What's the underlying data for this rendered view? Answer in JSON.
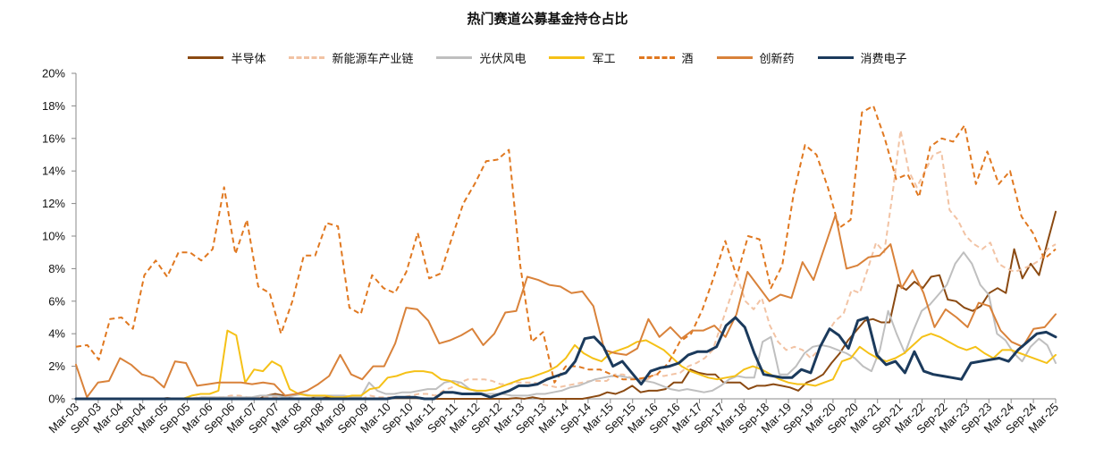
{
  "chart_data": {
    "type": "line",
    "title": "热门赛道公募基金持仓占比",
    "xlabel": "",
    "ylabel": "",
    "ylim": [
      0,
      20
    ],
    "y_ticks": [
      "0%",
      "2%",
      "4%",
      "6%",
      "8%",
      "10%",
      "12%",
      "14%",
      "16%",
      "18%",
      "20%"
    ],
    "x_tick_labels": [
      "Mar-03",
      "Sep-03",
      "Mar-04",
      "Sep-04",
      "Mar-05",
      "Sep-05",
      "Mar-06",
      "Sep-06",
      "Mar-07",
      "Sep-07",
      "Mar-08",
      "Sep-08",
      "Mar-09",
      "Sep-09",
      "Mar-10",
      "Sep-10",
      "Mar-11",
      "Sep-11",
      "Mar-12",
      "Sep-12",
      "Mar-13",
      "Sep-13",
      "Mar-14",
      "Sep-14",
      "Mar-15",
      "Sep-15",
      "Mar-16",
      "Sep-16",
      "Mar-17",
      "Sep-17",
      "Mar-18",
      "Sep-18",
      "Mar-19",
      "Sep-19",
      "Mar-20",
      "Sep-20",
      "Mar-21",
      "Sep-21",
      "Mar-22",
      "Sep-22",
      "Mar-23",
      "Sep-23",
      "Mar-24",
      "Sep-24",
      "Mar-25"
    ],
    "legend_position": "top",
    "grid": false,
    "series": [
      {
        "name": "半导体",
        "color": "#8B4A12",
        "dashed": false,
        "width": 2,
        "values": [
          0,
          0,
          0,
          0,
          0,
          0,
          0,
          0,
          0,
          0,
          0,
          0.05,
          0,
          0,
          0,
          0,
          0,
          0,
          0,
          0,
          0,
          0,
          0,
          0.2,
          0.3,
          0.2,
          0,
          0,
          0,
          0.1,
          0.1,
          0.05,
          0,
          0,
          0,
          0,
          0,
          0,
          0.05,
          0.05,
          0.05,
          0.05,
          0,
          0,
          0,
          0,
          0,
          0,
          0,
          0,
          0,
          0,
          0,
          0.05,
          0,
          0.1,
          0,
          0,
          0,
          0,
          0,
          0,
          0.1,
          0.2,
          0.4,
          0.3,
          0.5,
          0.8,
          0.4,
          0.5,
          0.5,
          0.6,
          1,
          1,
          1.8,
          1.6,
          1.5,
          1.5,
          1,
          1,
          1,
          0.6,
          0.8,
          0.8,
          0.9,
          0.8,
          0.7,
          0.5,
          1,
          1.2,
          1.5,
          2.2,
          2.8,
          3.6,
          4.2,
          4.8,
          4.9,
          4.7,
          4.7,
          7,
          6.7,
          7.2,
          6.8,
          7.5,
          7.6,
          6.1,
          6,
          5.6,
          5.4,
          5.7,
          6.5,
          6.8,
          6.5,
          9.2,
          7.4,
          8.3,
          7.6,
          9.6,
          11.5
        ]
      },
      {
        "name": "新能源车产业链",
        "color": "#F2C3A4",
        "dashed": true,
        "width": 2,
        "values": [
          0,
          0,
          0,
          0,
          0,
          0,
          0,
          0,
          0,
          0,
          0,
          0,
          0,
          0,
          0,
          0.1,
          0.1,
          0.1,
          0.1,
          0.2,
          0.2,
          0.1,
          0.1,
          0.1,
          0.1,
          0.1,
          0.1,
          0,
          0,
          0,
          0,
          0,
          0,
          0,
          0,
          0,
          0.2,
          0.1,
          0.1,
          0.1,
          0.1,
          0.2,
          0.3,
          0.3,
          0.2,
          0.5,
          0.7,
          1,
          1.2,
          1.2,
          1.2,
          1.1,
          0.9,
          0.9,
          1,
          1,
          1,
          0.9,
          0.8,
          0.7,
          0.8,
          0.9,
          1,
          1.1,
          1.1,
          1.1,
          1.5,
          1.5,
          1.3,
          1.2,
          1.2,
          1.5,
          1.4,
          1.5,
          1.6,
          2,
          2.2,
          2.5,
          3,
          4.5,
          6,
          7.5,
          6,
          5.5,
          6.2,
          4.5,
          3.5,
          3,
          3.2,
          3,
          2.5,
          3,
          4,
          4.8,
          5.2,
          6.7,
          6.5,
          8,
          9.6,
          9,
          12.5,
          16.5,
          14,
          13,
          14,
          15,
          15.2,
          11.6,
          11,
          10,
          9.5,
          9.2,
          9.6,
          8.3,
          8,
          7.8,
          8,
          8.2,
          8.5,
          9.2,
          9.5
        ]
      },
      {
        "name": "光伏风电",
        "color": "#BFBFBF",
        "dashed": false,
        "width": 2,
        "values": [
          0,
          0,
          0,
          0,
          0,
          0,
          0,
          0,
          0,
          0,
          0,
          0,
          0,
          0,
          0,
          0.1,
          0.1,
          0.1,
          0.1,
          0.1,
          0.1,
          0.1,
          0.2,
          0.2,
          0.2,
          0.1,
          0.2,
          0.3,
          0.2,
          0.1,
          0.2,
          0.2,
          0.2,
          0.1,
          0.1,
          1,
          0.5,
          0.3,
          0.3,
          0.4,
          0.4,
          0.5,
          0.6,
          0.6,
          1,
          1.1,
          1,
          0.6,
          0.4,
          0.3,
          0.3,
          0.3,
          0.2,
          0.2,
          0.2,
          0.3,
          0.3,
          0.4,
          0.5,
          0.7,
          0.8,
          1,
          1.2,
          1.3,
          1.4,
          1.4,
          1.3,
          1.2,
          1.1,
          1,
          0.8,
          0.6,
          0.5,
          0.6,
          0.5,
          0.4,
          0.5,
          0.8,
          1.2,
          1.4,
          1.3,
          1.3,
          3.5,
          3.8,
          1.5,
          1.5,
          2,
          2.8,
          3.2,
          3.3,
          3.2,
          3,
          2.8,
          2.5,
          2,
          1.7,
          3,
          5.4,
          4,
          2.8,
          4.2,
          5.4,
          5.8,
          6.4,
          7,
          8.3,
          9,
          8.3,
          7,
          6.4,
          4,
          3.6,
          2.8,
          2.3,
          3.2,
          3.7,
          3.3,
          2.2
        ]
      },
      {
        "name": "军工",
        "color": "#F5C117",
        "dashed": false,
        "width": 2,
        "values": [
          0,
          0,
          0,
          0,
          0,
          0,
          0,
          0,
          0,
          0,
          0,
          0,
          0,
          0.2,
          0.3,
          0.3,
          0.5,
          4.2,
          3.9,
          1,
          1.8,
          1.7,
          2.3,
          2,
          0.6,
          0.3,
          0.2,
          0.2,
          0.2,
          0.1,
          0.1,
          0.2,
          0.2,
          0.6,
          0.7,
          1.3,
          1.4,
          1.6,
          1.7,
          1.7,
          1.6,
          1.2,
          1.1,
          0.8,
          0.6,
          0.5,
          0.5,
          0.6,
          0.8,
          1,
          1.2,
          1.3,
          1.5,
          1.7,
          2,
          2.5,
          3.3,
          2.8,
          2.5,
          2.3,
          2.8,
          3,
          3.2,
          3.5,
          3.6,
          3.3,
          3,
          2.5,
          2,
          1.7,
          1.5,
          1.3,
          1.2,
          1.3,
          1.4,
          1.8,
          2,
          1.8,
          1.5,
          1.2,
          1,
          0.9,
          0.9,
          0.8,
          1,
          1.2,
          2.3,
          2.5,
          3.2,
          2.8,
          2.5,
          2.3,
          2.5,
          2.8,
          3.3,
          3.8,
          4,
          3.8,
          3.5,
          3.2,
          3,
          3.2,
          2.8,
          2.5,
          3,
          3,
          2.8,
          2.6,
          2.4,
          2.2,
          2.7
        ]
      },
      {
        "name": "酒",
        "color": "#E07820",
        "dashed": true,
        "width": 2,
        "values": [
          3.2,
          3.3,
          2.4,
          4.9,
          5,
          4.3,
          7.6,
          8.5,
          7.5,
          9,
          9,
          8.5,
          9.2,
          13,
          8.9,
          11,
          6.9,
          6.5,
          4,
          6,
          8.8,
          8.8,
          10.8,
          10.6,
          5.6,
          5.2,
          7.6,
          6.8,
          6.5,
          7.8,
          10.2,
          7.4,
          7.7,
          9.9,
          12,
          13.2,
          14.6,
          14.7,
          15.3,
          8.2,
          3.5,
          4.1,
          1,
          2,
          2,
          1.8,
          1.8,
          1.5,
          1.2,
          1.2,
          1.3,
          1.5,
          2.2,
          3.5,
          4,
          5.5,
          7.5,
          9.7,
          7.5,
          10,
          9.8,
          6.8,
          8.2,
          12.6,
          15.6,
          15,
          13,
          10.5,
          11,
          17.6,
          18,
          16,
          13.5,
          13.8,
          12.4,
          15.5,
          16,
          15.8,
          16.8,
          13.2,
          15.2,
          13.2,
          14,
          11.2,
          10.2,
          8.6,
          9.2
        ]
      },
      {
        "name": "创新药",
        "color": "#D9823A",
        "dashed": false,
        "width": 2,
        "values": [
          2.1,
          0.1,
          1,
          1.1,
          2.5,
          2.1,
          1.5,
          1.3,
          0.7,
          2.3,
          2.2,
          0.8,
          0.9,
          1,
          1,
          1,
          0.9,
          1,
          0.9,
          0.2,
          0.3,
          0.5,
          0.9,
          1.4,
          2.7,
          1.5,
          1.2,
          2,
          2,
          3.4,
          5.6,
          5.5,
          4.8,
          3.4,
          3.6,
          3.9,
          4.3,
          3.3,
          4,
          5.3,
          5.4,
          7.5,
          7.3,
          7,
          6.9,
          6.5,
          6.6,
          5.7,
          3,
          2.8,
          2.7,
          3.1,
          4.9,
          3.8,
          4.4,
          3.7,
          4.2,
          4.2,
          4.5,
          3.8,
          5.2,
          7.8,
          6.9,
          6,
          6.4,
          6.2,
          8.4,
          7.3,
          9.3,
          11.3,
          8,
          8.2,
          8.7,
          8.8,
          9.5,
          6.8,
          7.9,
          6.5,
          4.4,
          5.5,
          5,
          4.4,
          5.9,
          5.7,
          4.2,
          3.5,
          3.2,
          4.3,
          4.4,
          5.2
        ]
      },
      {
        "name": "消费电子",
        "color": "#1B3A5C",
        "dashed": false,
        "width": 3,
        "values": [
          0,
          0,
          0,
          0,
          0,
          0,
          0,
          0,
          0,
          0,
          0,
          0,
          0,
          0,
          0,
          0,
          0,
          0,
          0,
          0,
          0,
          0,
          0,
          0,
          0,
          0,
          0,
          0,
          0,
          0,
          0,
          0,
          0,
          0,
          0.1,
          0.1,
          0.1,
          0,
          0,
          0.4,
          0.4,
          0.3,
          0.3,
          0.3,
          0.1,
          0.3,
          0.5,
          0.8,
          0.8,
          0.9,
          1.2,
          1.4,
          1.6,
          2.3,
          3.7,
          3.8,
          3.2,
          2,
          2.3,
          1.6,
          0.9,
          1.7,
          1.9,
          2,
          2.2,
          2.7,
          2.9,
          2.9,
          3.2,
          4.5,
          5,
          4.4,
          2.8,
          1.5,
          1.4,
          1.3,
          1.3,
          1.8,
          1.6,
          3.2,
          4.3,
          3.9,
          3.1,
          4.8,
          5,
          2.7,
          2.1,
          2.3,
          1.6,
          2.9,
          1.7,
          1.5,
          1.4,
          1.3,
          1.2,
          2.2,
          2.3,
          2.4,
          2.5,
          2.3,
          3,
          3.5,
          4,
          4.1,
          3.8
        ]
      }
    ]
  }
}
